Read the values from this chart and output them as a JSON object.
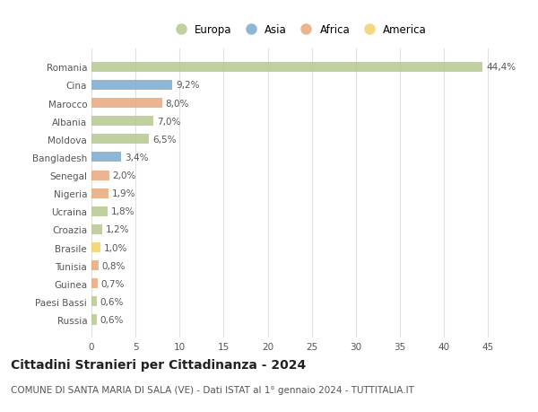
{
  "countries": [
    "Romania",
    "Cina",
    "Marocco",
    "Albania",
    "Moldova",
    "Bangladesh",
    "Senegal",
    "Nigeria",
    "Ucraina",
    "Croazia",
    "Brasile",
    "Tunisia",
    "Guinea",
    "Paesi Bassi",
    "Russia"
  ],
  "values": [
    44.4,
    9.2,
    8.0,
    7.0,
    6.5,
    3.4,
    2.0,
    1.9,
    1.8,
    1.2,
    1.0,
    0.8,
    0.7,
    0.6,
    0.6
  ],
  "labels": [
    "44,4%",
    "9,2%",
    "8,0%",
    "7,0%",
    "6,5%",
    "3,4%",
    "2,0%",
    "1,9%",
    "1,8%",
    "1,2%",
    "1,0%",
    "0,8%",
    "0,7%",
    "0,6%",
    "0,6%"
  ],
  "continents": [
    "Europa",
    "Asia",
    "Africa",
    "Europa",
    "Europa",
    "Asia",
    "Africa",
    "Africa",
    "Europa",
    "Europa",
    "America",
    "Africa",
    "Africa",
    "Europa",
    "Europa"
  ],
  "continent_colors": {
    "Europa": "#b5c98e",
    "Asia": "#7aabcf",
    "Africa": "#e8a87c",
    "America": "#f2d06b"
  },
  "legend_order": [
    "Europa",
    "Asia",
    "Africa",
    "America"
  ],
  "title": "Cittadini Stranieri per Cittadinanza - 2024",
  "subtitle": "COMUNE DI SANTA MARIA DI SALA (VE) - Dati ISTAT al 1° gennaio 2024 - TUTTITALIA.IT",
  "xlim": [
    0,
    47
  ],
  "xticks": [
    0,
    5,
    10,
    15,
    20,
    25,
    30,
    35,
    40,
    45
  ],
  "background_color": "#ffffff",
  "grid_color": "#e0e0e0",
  "bar_height": 0.55,
  "title_fontsize": 10,
  "subtitle_fontsize": 7.5,
  "label_fontsize": 7.5,
  "ytick_fontsize": 7.5,
  "xtick_fontsize": 7.5,
  "legend_fontsize": 8.5
}
